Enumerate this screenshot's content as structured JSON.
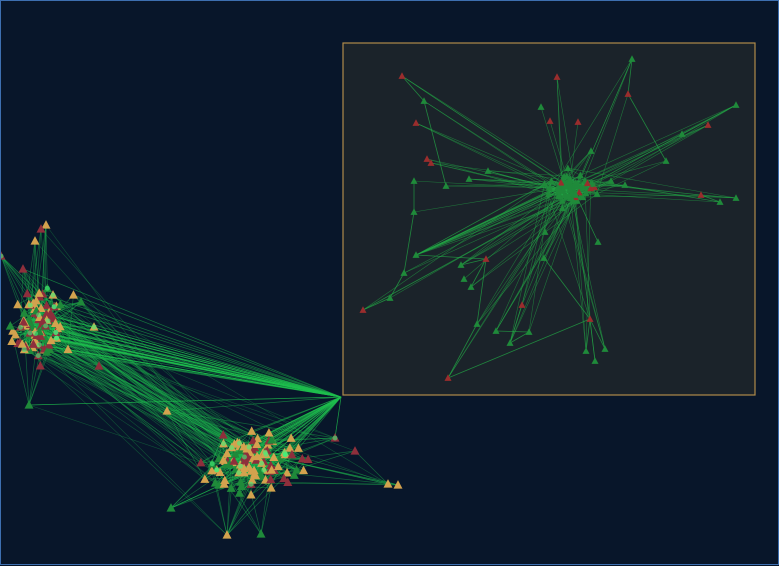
{
  "colors": {
    "background": "#08162a",
    "border": "#3d6fb0",
    "inset_bg": "#1b232a",
    "inset_border": "#b08a4a",
    "edge_main": "#1fbf4f",
    "edge_inset": "#23a846",
    "node_red": "#8e2f3c",
    "node_yellow": "#d3a24e",
    "node_green": "#1f8a3a",
    "node_inset_red": "#9a2d2d"
  },
  "icons": {
    "node_shape": "triangle-icon"
  },
  "views": {
    "main": "network-overview",
    "inset": "network-detail-view"
  }
}
